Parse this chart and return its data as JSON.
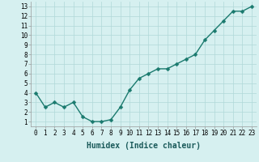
{
  "x": [
    0,
    1,
    2,
    3,
    4,
    5,
    6,
    7,
    8,
    9,
    10,
    11,
    12,
    13,
    14,
    15,
    16,
    17,
    18,
    19,
    20,
    21,
    22,
    23
  ],
  "y": [
    4.0,
    2.5,
    3.0,
    2.5,
    3.0,
    1.5,
    1.0,
    1.0,
    1.2,
    2.5,
    4.3,
    5.5,
    6.0,
    6.5,
    6.5,
    7.0,
    7.5,
    8.0,
    9.5,
    10.5,
    11.5,
    12.5,
    12.5,
    13.0
  ],
  "line_color": "#1a7a6e",
  "marker_color": "#1a7a6e",
  "bg_color": "#d6f0f0",
  "grid_color": "#b0d8d8",
  "xlabel": "Humidex (Indice chaleur)",
  "xlim": [
    -0.5,
    23.5
  ],
  "ylim": [
    0.5,
    13.5
  ],
  "yticks": [
    1,
    2,
    3,
    4,
    5,
    6,
    7,
    8,
    9,
    10,
    11,
    12,
    13
  ],
  "xticks": [
    0,
    1,
    2,
    3,
    4,
    5,
    6,
    7,
    8,
    9,
    10,
    11,
    12,
    13,
    14,
    15,
    16,
    17,
    18,
    19,
    20,
    21,
    22,
    23
  ],
  "xlabel_fontsize": 7,
  "tick_fontsize": 5.5,
  "line_width": 1.0,
  "marker_size": 2.5,
  "fig_width": 3.2,
  "fig_height": 2.0,
  "dpi": 100
}
